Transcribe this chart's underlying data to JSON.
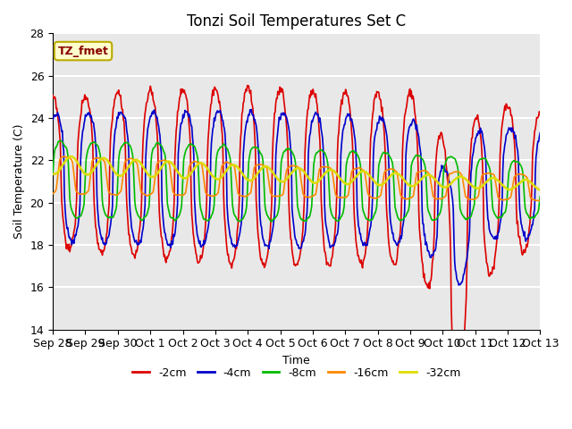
{
  "title": "Tonzi Soil Temperatures Set C",
  "xlabel": "Time",
  "ylabel": "Soil Temperature (C)",
  "ylim": [
    14,
    28
  ],
  "xlim": [
    0,
    15
  ],
  "annotation": "TZ_fmet",
  "annotation_color": "#880000",
  "annotation_bg": "#ffffcc",
  "annotation_border": "#bbaa00",
  "background_color": "#e8e8e8",
  "grid_color": "white",
  "series": {
    "-2cm": {
      "color": "#dd0000",
      "lw": 1.2
    },
    "-4cm": {
      "color": "#0000cc",
      "lw": 1.2
    },
    "-8cm": {
      "color": "#00bb00",
      "lw": 1.2
    },
    "-16cm": {
      "color": "#ff8800",
      "lw": 1.2
    },
    "-32cm": {
      "color": "#dddd00",
      "lw": 1.8
    }
  },
  "xtick_labels": [
    "Sep 28",
    "Sep 29",
    "Sep 30",
    "Oct 1",
    "Oct 2",
    "Oct 3",
    "Oct 4",
    "Oct 5",
    "Oct 6",
    "Oct 7",
    "Oct 8",
    "Oct 9",
    "Oct 10",
    "Oct 11",
    "Oct 12",
    "Oct 13"
  ],
  "xtick_positions": [
    0,
    1,
    2,
    3,
    4,
    5,
    6,
    7,
    8,
    9,
    10,
    11,
    12,
    13,
    14,
    15
  ],
  "ytick_positions": [
    14,
    16,
    18,
    20,
    22,
    24,
    26,
    28
  ]
}
